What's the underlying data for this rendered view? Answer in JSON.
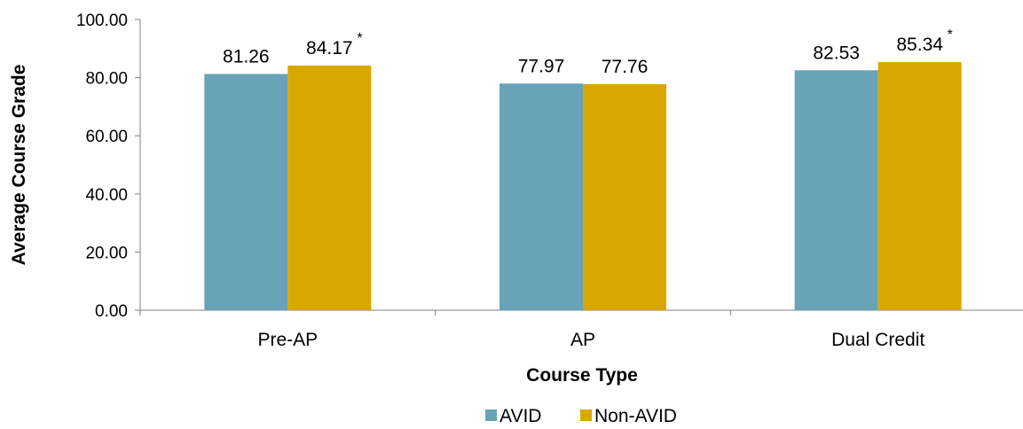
{
  "chart_data": {
    "type": "bar",
    "categories": [
      "Pre-AP",
      "AP",
      "Dual Credit"
    ],
    "series": [
      {
        "name": "AVID",
        "color": "#68A3B8",
        "values": [
          81.26,
          77.97,
          82.53
        ],
        "labels": [
          "81.26",
          "77.97",
          "82.53"
        ],
        "marks": [
          "",
          "",
          ""
        ]
      },
      {
        "name": "Non-AVID",
        "color": "#D9A800",
        "values": [
          84.17,
          77.76,
          85.34
        ],
        "labels": [
          "84.17",
          "77.76",
          "85.34"
        ],
        "marks": [
          "*",
          "",
          "*"
        ]
      }
    ],
    "xlabel": "Course Type",
    "ylabel": "Average Course Grade",
    "ylim": [
      0,
      100
    ],
    "yticks": [
      0,
      20,
      40,
      60,
      80,
      100
    ],
    "ytick_labels": [
      "0.00",
      "20.00",
      "40.00",
      "60.00",
      "80.00",
      "100.00"
    ],
    "grid": false,
    "legend_position": "bottom"
  }
}
